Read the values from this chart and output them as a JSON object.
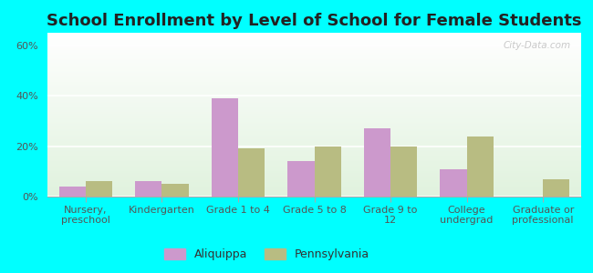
{
  "title": "School Enrollment by Level of School for Female Students",
  "categories": [
    "Nursery,\npreschool",
    "Kindergarten",
    "Grade 1 to 4",
    "Grade 5 to 8",
    "Grade 9 to\n12",
    "College\nundergrad",
    "Graduate or\nprofessional"
  ],
  "aliquippa": [
    4,
    6,
    39,
    14,
    27,
    11,
    0
  ],
  "pennsylvania": [
    6,
    5,
    19,
    20,
    20,
    24,
    7
  ],
  "aliquippa_color": "#cc99cc",
  "pennsylvania_color": "#b8bc82",
  "bar_width": 0.35,
  "ylim": [
    0,
    65
  ],
  "yticks": [
    0,
    20,
    40,
    60
  ],
  "ytick_labels": [
    "0%",
    "20%",
    "40%",
    "60%"
  ],
  "background_color": "#00ffff",
  "title_fontsize": 13,
  "tick_fontsize": 8,
  "legend_fontsize": 9
}
